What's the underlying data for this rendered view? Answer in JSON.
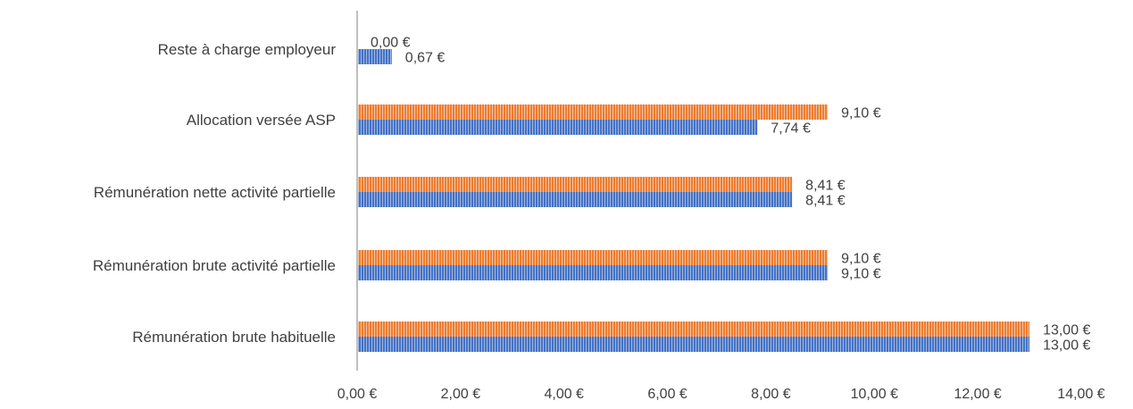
{
  "chart_data": {
    "type": "bar",
    "orientation": "horizontal",
    "title": "",
    "xlabel": "",
    "ylabel": "",
    "categories": [
      "Rémunération brute habituelle",
      "Rémunération brute activité partielle",
      "Rémunération nette activité partielle",
      "Allocation versée ASP",
      "Reste à charge employeur"
    ],
    "series": [
      {
        "color": "#4472C4",
        "values": [
          13.0,
          9.1,
          8.41,
          7.74,
          0.67
        ],
        "labels": [
          "13,00 €",
          "9,10 €",
          "8,41 €",
          "7,74 €",
          "0,67 €"
        ]
      },
      {
        "color": "#ED7D31",
        "values": [
          13.0,
          9.1,
          8.41,
          9.1,
          0.0
        ],
        "labels": [
          "13,00 €",
          "9,10 €",
          "8,41 €",
          "9,10 €",
          "0,00 €"
        ]
      }
    ],
    "xlim": [
      0,
      14
    ],
    "xticks": [
      0,
      2,
      4,
      6,
      8,
      10,
      12,
      14
    ],
    "xtick_labels": [
      "0,00 €",
      "2,00 €",
      "4,00 €",
      "6,00 €",
      "8,00 €",
      "10,00 €",
      "12,00 €",
      "14,00 €"
    ],
    "grid": false,
    "legend": "none"
  }
}
